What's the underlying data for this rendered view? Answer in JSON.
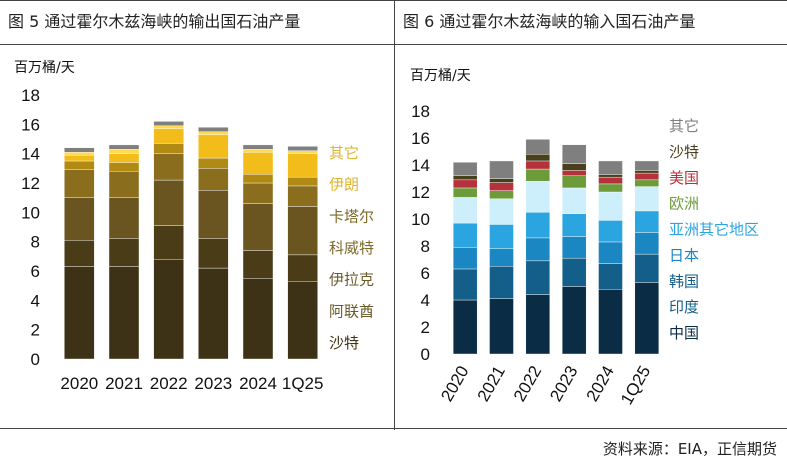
{
  "header": {
    "left_title": "图 5  通过霍尔木兹海峡的输出国石油产量",
    "right_title": "图 6    通过霍尔木兹海峡的输入国石油产量"
  },
  "footer": {
    "source": "资料来源：EIA，正信期货"
  },
  "chart_data": [
    {
      "type": "bar",
      "stacked": true,
      "title": "图 5  通过霍尔木兹海峡的输出国石油产量",
      "ylabel": "百万桶/天",
      "ylim": [
        0,
        18
      ],
      "yticks": [
        0,
        2,
        4,
        6,
        8,
        10,
        12,
        14,
        16,
        18
      ],
      "categories": [
        "2020",
        "2021",
        "2022",
        "2023",
        "2024",
        "1Q25"
      ],
      "series": [
        {
          "name": "沙特",
          "color": "#3d3216",
          "values": [
            6.3,
            6.3,
            6.8,
            6.2,
            5.5,
            5.3
          ]
        },
        {
          "name": "阿联酋",
          "color": "#4b3c18",
          "values": [
            1.8,
            1.9,
            2.3,
            2.0,
            1.9,
            1.8
          ]
        },
        {
          "name": "伊拉克",
          "color": "#6a5520",
          "values": [
            2.9,
            2.8,
            3.1,
            3.3,
            3.2,
            3.3
          ]
        },
        {
          "name": "科威特",
          "color": "#8a6d1d",
          "values": [
            1.9,
            1.8,
            1.8,
            1.5,
            1.4,
            1.4
          ]
        },
        {
          "name": "卡塔尔",
          "color": "#b08a12",
          "values": [
            0.6,
            0.6,
            0.7,
            0.7,
            0.6,
            0.6
          ]
        },
        {
          "name": "伊朗",
          "color": "#f2bd1a",
          "values": [
            0.4,
            0.6,
            1.0,
            1.6,
            1.5,
            1.6
          ]
        },
        {
          "name": "其它",
          "color": "#ffd94f",
          "values": [
            0.2,
            0.3,
            0.2,
            0.2,
            0.2,
            0.2
          ]
        },
        {
          "name": "",
          "color": "#7f7f7f",
          "values": [
            0.3,
            0.3,
            0.3,
            0.3,
            0.3,
            0.3
          ]
        }
      ],
      "legend_colors": [
        "#3d3216",
        "#6b5a2a",
        "#6b5a2a",
        "#7e6a2a",
        "#7e6a2a",
        "#e0b52f",
        "#e0b52f"
      ]
    },
    {
      "type": "bar",
      "stacked": true,
      "title": "图 6    通过霍尔木兹海峡的输入国石油产量",
      "ylabel": "百万桶/天",
      "ylim": [
        0,
        18
      ],
      "yticks": [
        0,
        2,
        4,
        6,
        8,
        10,
        12,
        14,
        16,
        18
      ],
      "categories": [
        "2020",
        "2021",
        "2022",
        "2023",
        "2024",
        "1Q25"
      ],
      "series": [
        {
          "name": "中国",
          "color": "#0b2c45",
          "values": [
            4.0,
            4.1,
            4.4,
            5.0,
            4.8,
            5.3
          ]
        },
        {
          "name": "印度",
          "color": "#135f8a",
          "values": [
            2.3,
            2.4,
            2.5,
            2.1,
            1.9,
            2.1
          ]
        },
        {
          "name": "韩国",
          "color": "#1a86c2",
          "values": [
            1.6,
            1.3,
            1.7,
            1.6,
            1.6,
            1.6
          ]
        },
        {
          "name": "日本",
          "color": "#2aa5e0",
          "values": [
            1.8,
            1.8,
            1.9,
            1.7,
            1.6,
            1.6
          ]
        },
        {
          "name": "亚洲其它地区",
          "color": "#cdeefb",
          "values": [
            1.9,
            1.9,
            2.3,
            1.9,
            2.1,
            1.8
          ]
        },
        {
          "name": "欧洲",
          "color": "#6d9b3a",
          "values": [
            0.7,
            0.6,
            0.9,
            0.9,
            0.6,
            0.5
          ]
        },
        {
          "name": "美国",
          "color": "#b5313b",
          "values": [
            0.6,
            0.6,
            0.6,
            0.4,
            0.5,
            0.5
          ]
        },
        {
          "name": "沙特",
          "color": "#4a3f1c",
          "values": [
            0.3,
            0.3,
            0.5,
            0.5,
            0.2,
            0.2
          ]
        },
        {
          "name": "其它",
          "color": "#7f7f7f",
          "values": [
            1.0,
            1.3,
            1.1,
            1.4,
            1.0,
            0.7
          ]
        }
      ],
      "legend_colors": [
        "#0b2c45",
        "#135f8a",
        "#135f8a",
        "#1a86c2",
        "#2aa5e0",
        "#6d9b3a",
        "#b5313b",
        "#4a3f1c",
        "#7f7f7f"
      ]
    }
  ]
}
